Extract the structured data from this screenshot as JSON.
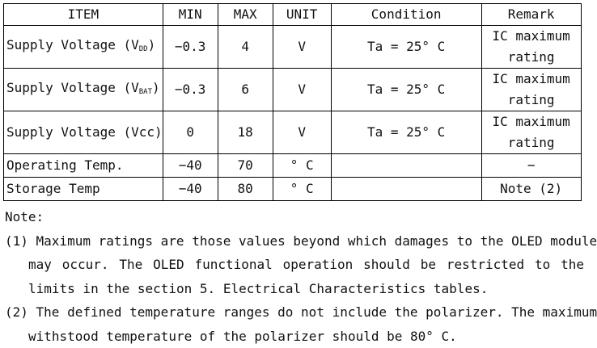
{
  "table": {
    "headers": [
      "ITEM",
      "MIN",
      "MAX",
      "UNIT",
      "Condition",
      "Remark"
    ],
    "rows": [
      {
        "item_prefix": "Supply Voltage (V",
        "item_sub": "DD",
        "item_suffix": ")",
        "min": "−0.3",
        "max": "4",
        "unit": "V",
        "condition": "Ta = 25° C",
        "remark_1": "IC maximum",
        "remark_2": "rating"
      },
      {
        "item_prefix": "Supply Voltage (V",
        "item_sub": "BAT",
        "item_suffix": ")",
        "min": "−0.3",
        "max": "6",
        "unit": "V",
        "condition": "Ta = 25° C",
        "remark_1": "IC maximum",
        "remark_2": "rating"
      },
      {
        "item": "Supply Voltage (Vcc)",
        "min": "0",
        "max": "18",
        "unit": "V",
        "condition": "Ta = 25° C",
        "remark_1": "IC maximum",
        "remark_2": "rating"
      },
      {
        "item": "Operating Temp.",
        "min": "−40",
        "max": "70",
        "unit": "° C",
        "condition": "",
        "remark": "−"
      },
      {
        "item": "Storage Temp",
        "min": "−40",
        "max": "80",
        "unit": "° C",
        "condition": "",
        "remark": "Note (2)"
      }
    ]
  },
  "notes": {
    "label": "Note:",
    "note1_line1": "(1) Maximum ratings are those values beyond which damages to the OLED module",
    "note1_line2": "may occur. The OLED functional operation should be restricted to the",
    "note1_line3": "limits in the section 5. Electrical Characteristics tables.",
    "note2_line1": "(2) The defined temperature ranges do not include the polarizer. The maximum",
    "note2_line2": "withstood temperature of the polarizer should be 80° C."
  }
}
